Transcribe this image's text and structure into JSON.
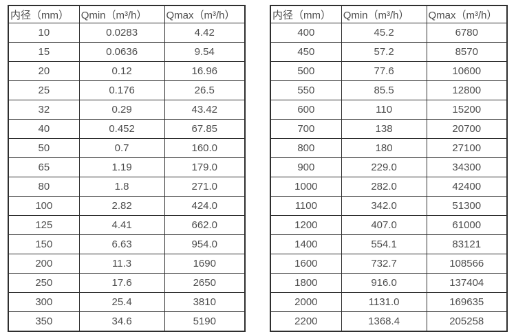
{
  "colors": {
    "background": "#ffffff",
    "border": "#2e2e2e",
    "text": "#4d4d4d"
  },
  "tables": [
    {
      "name": "flow-rate-table-small-diameters",
      "headers": [
        "内径（mm）",
        "Qmin（m³/h）",
        "Qmax（m³/h）"
      ],
      "rows": [
        [
          "10",
          "0.0283",
          "4.42"
        ],
        [
          "15",
          "0.0636",
          "9.54"
        ],
        [
          "20",
          "0.12",
          "16.96"
        ],
        [
          "25",
          "0.176",
          "26.5"
        ],
        [
          "32",
          "0.29",
          "43.42"
        ],
        [
          "40",
          "0.452",
          "67.85"
        ],
        [
          "50",
          "0.7",
          "160.0"
        ],
        [
          "65",
          "1.19",
          "179.0"
        ],
        [
          "80",
          "1.8",
          "271.0"
        ],
        [
          "100",
          "2.82",
          "424.0"
        ],
        [
          "125",
          "4.41",
          "662.0"
        ],
        [
          "150",
          "6.63",
          "954.0"
        ],
        [
          "200",
          "11.3",
          "1690"
        ],
        [
          "250",
          "17.6",
          "2650"
        ],
        [
          "300",
          "25.4",
          "3810"
        ],
        [
          "350",
          "34.6",
          "5190"
        ]
      ]
    },
    {
      "name": "flow-rate-table-large-diameters",
      "headers": [
        "内径（mm）",
        "Qmin（m³/h）",
        "Qmax（m³/h）"
      ],
      "rows": [
        [
          "400",
          "45.2",
          "6780"
        ],
        [
          "450",
          "57.2",
          "8570"
        ],
        [
          "500",
          "77.6",
          "10600"
        ],
        [
          "550",
          "85.5",
          "12800"
        ],
        [
          "600",
          "110",
          "15200"
        ],
        [
          "700",
          "138",
          "20700"
        ],
        [
          "800",
          "180",
          "27100"
        ],
        [
          "900",
          "229.0",
          "34300"
        ],
        [
          "1000",
          "282.0",
          "42400"
        ],
        [
          "1100",
          "342.0",
          "51300"
        ],
        [
          "1200",
          "407.0",
          "61000"
        ],
        [
          "1400",
          "554.1",
          "83121"
        ],
        [
          "1600",
          "732.7",
          "108566"
        ],
        [
          "1800",
          "916.0",
          "137404"
        ],
        [
          "2000",
          "1131.0",
          "169635"
        ],
        [
          "2200",
          "1368.4",
          "205258"
        ]
      ]
    }
  ]
}
